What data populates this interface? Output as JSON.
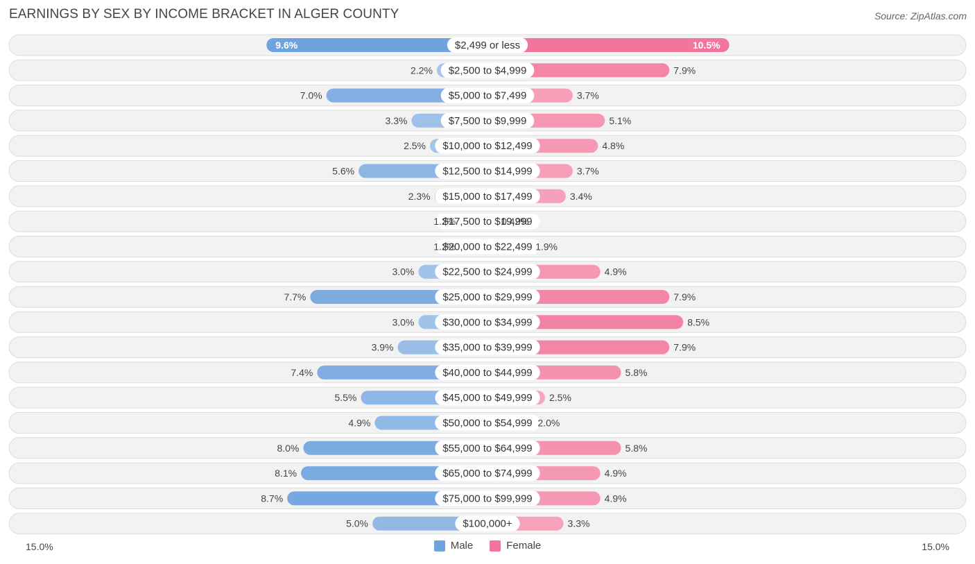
{
  "title": "EARNINGS BY SEX BY INCOME BRACKET IN ALGER COUNTY",
  "source": "Source: ZipAtlas.com",
  "colors": {
    "male": "#6fa3de",
    "female": "#f2769b",
    "row_bg": "#f2f2f2",
    "row_border": "#dcdcdc"
  },
  "chart_data": {
    "type": "bar",
    "orientation": "horizontal-diverging",
    "categories": [
      "$2,499 or less",
      "$2,500 to $4,999",
      "$5,000 to $7,499",
      "$7,500 to $9,999",
      "$10,000 to $12,499",
      "$12,500 to $14,999",
      "$15,000 to $17,499",
      "$17,500 to $19,999",
      "$20,000 to $22,499",
      "$22,500 to $24,999",
      "$25,000 to $29,999",
      "$30,000 to $34,999",
      "$35,000 to $39,999",
      "$40,000 to $44,999",
      "$45,000 to $49,999",
      "$50,000 to $54,999",
      "$55,000 to $64,999",
      "$65,000 to $74,999",
      "$75,000 to $99,999",
      "$100,000+"
    ],
    "series": [
      {
        "name": "Male",
        "values": [
          9.6,
          2.2,
          7.0,
          3.3,
          2.5,
          5.6,
          2.3,
          1.2,
          1.2,
          3.0,
          7.7,
          3.0,
          3.9,
          7.4,
          5.5,
          4.9,
          8.0,
          8.1,
          8.7,
          5.0
        ],
        "labels": [
          "9.6%",
          "2.2%",
          "7.0%",
          "3.3%",
          "2.5%",
          "5.6%",
          "2.3%",
          "1.2%",
          "1.2%",
          "3.0%",
          "7.7%",
          "3.0%",
          "3.9%",
          "7.4%",
          "5.5%",
          "4.9%",
          "8.0%",
          "8.1%",
          "8.7%",
          "5.0%"
        ]
      },
      {
        "name": "Female",
        "values": [
          10.5,
          7.9,
          3.7,
          5.1,
          4.8,
          3.7,
          3.4,
          0.42,
          1.9,
          4.9,
          7.9,
          8.5,
          7.9,
          5.8,
          2.5,
          2.0,
          5.8,
          4.9,
          4.9,
          3.3
        ],
        "labels": [
          "10.5%",
          "7.9%",
          "3.7%",
          "5.1%",
          "4.8%",
          "3.7%",
          "3.4%",
          "0.42%",
          "1.9%",
          "4.9%",
          "7.9%",
          "8.5%",
          "7.9%",
          "5.8%",
          "2.5%",
          "2.0%",
          "5.8%",
          "4.9%",
          "4.9%",
          "3.3%"
        ]
      }
    ],
    "xlim": [
      -15,
      15
    ],
    "axis_labels": {
      "left": "15.0%",
      "right": "15.0%"
    },
    "legend": [
      "Male",
      "Female"
    ],
    "legend_position": "bottom-center"
  }
}
